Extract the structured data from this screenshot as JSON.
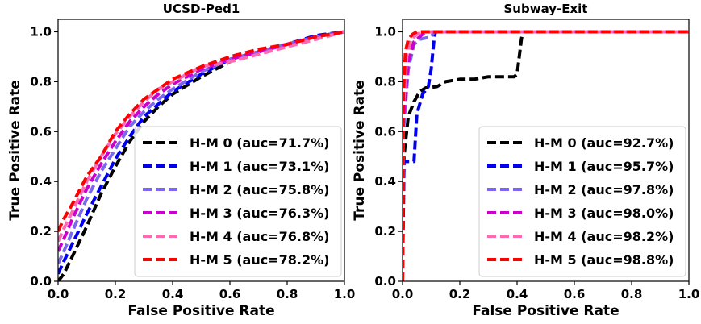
{
  "chart_data": [
    {
      "type": "line",
      "title": "UCSD-Ped1",
      "xlabel": "False Positive Rate",
      "ylabel": "True Positive Rate",
      "xlim": [
        0,
        1
      ],
      "ylim": [
        0,
        1.05
      ],
      "xticks": [
        "0.0",
        "0.2",
        "0.4",
        "0.6",
        "0.8",
        "1.0"
      ],
      "yticks": [
        "0.0",
        "0.2",
        "0.4",
        "0.6",
        "0.8",
        "1.0"
      ],
      "legend_position": "lower-right",
      "series": [
        {
          "name": "H-M 0 (auc=71.7%)",
          "color": "#000000",
          "points": [
            [
              0,
              0
            ],
            [
              0.02,
              0.03
            ],
            [
              0.05,
              0.1
            ],
            [
              0.1,
              0.22
            ],
            [
              0.15,
              0.35
            ],
            [
              0.2,
              0.46
            ],
            [
              0.25,
              0.56
            ],
            [
              0.3,
              0.64
            ],
            [
              0.35,
              0.7
            ],
            [
              0.4,
              0.75
            ],
            [
              0.5,
              0.82
            ],
            [
              0.6,
              0.88
            ],
            [
              0.7,
              0.92
            ],
            [
              0.8,
              0.95
            ],
            [
              0.9,
              0.98
            ],
            [
              1,
              1
            ]
          ]
        },
        {
          "name": "H-M 1 (auc=73.1%)",
          "color": "#0000ee",
          "points": [
            [
              0,
              0.03
            ],
            [
              0.02,
              0.08
            ],
            [
              0.05,
              0.15
            ],
            [
              0.1,
              0.27
            ],
            [
              0.15,
              0.38
            ],
            [
              0.2,
              0.49
            ],
            [
              0.25,
              0.58
            ],
            [
              0.3,
              0.66
            ],
            [
              0.35,
              0.71
            ],
            [
              0.4,
              0.76
            ],
            [
              0.5,
              0.83
            ],
            [
              0.6,
              0.89
            ],
            [
              0.7,
              0.92
            ],
            [
              0.8,
              0.95
            ],
            [
              0.9,
              0.985
            ],
            [
              1,
              1
            ]
          ]
        },
        {
          "name": "H-M 2 (auc=75.8%)",
          "color": "#7b68ee",
          "points": [
            [
              0,
              0.07
            ],
            [
              0.02,
              0.12
            ],
            [
              0.05,
              0.2
            ],
            [
              0.1,
              0.33
            ],
            [
              0.15,
              0.44
            ],
            [
              0.2,
              0.53
            ],
            [
              0.25,
              0.62
            ],
            [
              0.3,
              0.68
            ],
            [
              0.35,
              0.73
            ],
            [
              0.4,
              0.77
            ],
            [
              0.5,
              0.84
            ],
            [
              0.6,
              0.89
            ],
            [
              0.7,
              0.92
            ],
            [
              0.8,
              0.95
            ],
            [
              0.9,
              0.98
            ],
            [
              1,
              1
            ]
          ]
        },
        {
          "name": "H-M 3 (auc=76.3%)",
          "color": "#cc00cc",
          "points": [
            [
              0,
              0.12
            ],
            [
              0.02,
              0.17
            ],
            [
              0.05,
              0.25
            ],
            [
              0.1,
              0.37
            ],
            [
              0.15,
              0.47
            ],
            [
              0.2,
              0.56
            ],
            [
              0.25,
              0.64
            ],
            [
              0.3,
              0.7
            ],
            [
              0.35,
              0.75
            ],
            [
              0.4,
              0.79
            ],
            [
              0.5,
              0.85
            ],
            [
              0.6,
              0.89
            ],
            [
              0.7,
              0.92
            ],
            [
              0.8,
              0.95
            ],
            [
              0.9,
              0.98
            ],
            [
              1,
              1
            ]
          ]
        },
        {
          "name": "H-M 4 (auc=76.8%)",
          "color": "#ff69b4",
          "points": [
            [
              0,
              0.16
            ],
            [
              0.02,
              0.21
            ],
            [
              0.05,
              0.28
            ],
            [
              0.1,
              0.4
            ],
            [
              0.15,
              0.5
            ],
            [
              0.2,
              0.59
            ],
            [
              0.25,
              0.66
            ],
            [
              0.3,
              0.72
            ],
            [
              0.35,
              0.77
            ],
            [
              0.4,
              0.8
            ],
            [
              0.5,
              0.86
            ],
            [
              0.6,
              0.88
            ],
            [
              0.7,
              0.91
            ],
            [
              0.8,
              0.94
            ],
            [
              0.9,
              0.97
            ],
            [
              1,
              1
            ]
          ]
        },
        {
          "name": "H-M 5 (auc=78.2%)",
          "color": "#ff0000",
          "points": [
            [
              0,
              0.2
            ],
            [
              0.02,
              0.25
            ],
            [
              0.05,
              0.31
            ],
            [
              0.1,
              0.42
            ],
            [
              0.15,
              0.5
            ],
            [
              0.2,
              0.6
            ],
            [
              0.25,
              0.67
            ],
            [
              0.3,
              0.73
            ],
            [
              0.35,
              0.77
            ],
            [
              0.4,
              0.81
            ],
            [
              0.5,
              0.86
            ],
            [
              0.6,
              0.9
            ],
            [
              0.7,
              0.93
            ],
            [
              0.8,
              0.95
            ],
            [
              0.9,
              0.98
            ],
            [
              1,
              1
            ]
          ]
        }
      ]
    },
    {
      "type": "line",
      "title": "Subway-Exit",
      "xlabel": "False Positive Rate",
      "ylabel": "True Positive Rate",
      "xlim": [
        0,
        1
      ],
      "ylim": [
        0,
        1.05
      ],
      "xticks": [
        "0.0",
        "0.2",
        "0.4",
        "0.6",
        "0.8",
        "1.0"
      ],
      "yticks": [
        "0.0",
        "0.2",
        "0.4",
        "0.6",
        "0.8",
        "1.0"
      ],
      "legend_position": "lower-right",
      "series": [
        {
          "name": "H-M 0 (auc=92.7%)",
          "color": "#000000",
          "points": [
            [
              0,
              0
            ],
            [
              0.005,
              0.5
            ],
            [
              0.02,
              0.66
            ],
            [
              0.04,
              0.72
            ],
            [
              0.06,
              0.76
            ],
            [
              0.08,
              0.775
            ],
            [
              0.12,
              0.78
            ],
            [
              0.15,
              0.8
            ],
            [
              0.2,
              0.81
            ],
            [
              0.25,
              0.81
            ],
            [
              0.3,
              0.82
            ],
            [
              0.39,
              0.82
            ],
            [
              0.4,
              0.83
            ],
            [
              0.415,
              0.97
            ],
            [
              0.42,
              1
            ],
            [
              1,
              1
            ]
          ]
        },
        {
          "name": "H-M 1 (auc=95.7%)",
          "color": "#0000ee",
          "points": [
            [
              0,
              0
            ],
            [
              0.005,
              0.48
            ],
            [
              0.04,
              0.48
            ],
            [
              0.05,
              0.67
            ],
            [
              0.07,
              0.75
            ],
            [
              0.09,
              0.78
            ],
            [
              0.1,
              0.85
            ],
            [
              0.11,
              0.97
            ],
            [
              0.115,
              1
            ],
            [
              1,
              1
            ]
          ]
        },
        {
          "name": "H-M 2 (auc=97.8%)",
          "color": "#7b68ee",
          "points": [
            [
              0,
              0
            ],
            [
              0.003,
              0.6
            ],
            [
              0.02,
              0.85
            ],
            [
              0.04,
              0.95
            ],
            [
              0.06,
              0.97
            ],
            [
              0.1,
              0.98
            ],
            [
              0.11,
              1
            ],
            [
              1,
              1
            ]
          ]
        },
        {
          "name": "H-M 3 (auc=98.0%)",
          "color": "#cc00cc",
          "points": [
            [
              0,
              0
            ],
            [
              0.003,
              0.65
            ],
            [
              0.02,
              0.88
            ],
            [
              0.04,
              0.96
            ],
            [
              0.06,
              0.98
            ],
            [
              0.08,
              1
            ],
            [
              1,
              1
            ]
          ]
        },
        {
          "name": "H-M 4 (auc=98.2%)",
          "color": "#ff69b4",
          "points": [
            [
              0,
              0
            ],
            [
              0.003,
              0.7
            ],
            [
              0.015,
              0.9
            ],
            [
              0.03,
              0.97
            ],
            [
              0.05,
              0.99
            ],
            [
              0.07,
              1
            ],
            [
              1,
              1
            ]
          ]
        },
        {
          "name": "H-M 5 (auc=98.8%)",
          "color": "#ff0000",
          "points": [
            [
              0,
              0
            ],
            [
              0.003,
              0.75
            ],
            [
              0.01,
              0.92
            ],
            [
              0.02,
              0.97
            ],
            [
              0.035,
              0.99
            ],
            [
              0.05,
              1
            ],
            [
              1,
              1
            ]
          ]
        }
      ]
    }
  ]
}
